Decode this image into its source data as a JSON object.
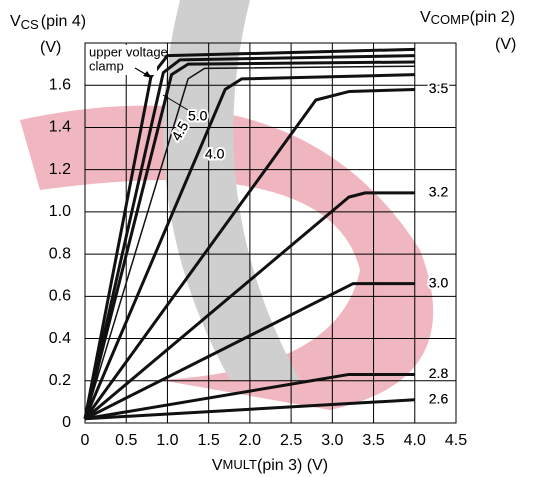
{
  "chart_data": {
    "type": "line",
    "y_axis_label": {
      "main": "V",
      "sub": "CS",
      "suffix": "(pin 4)",
      "unit": "(V)"
    },
    "legend_title": {
      "main": "V",
      "sub": "COMP",
      "suffix": "(pin 2)",
      "unit": "(V)"
    },
    "x_axis_label": {
      "main": "V",
      "sub": "MULT",
      "suffix": "(pin 3) (V)"
    },
    "annotation": [
      "upper voltage",
      "clamp"
    ],
    "xlim": [
      0,
      4.5
    ],
    "ylim": [
      0,
      1.8
    ],
    "xticks": [
      0,
      0.5,
      {
        "value": 1,
        "label": "1.0"
      },
      1.5,
      {
        "value": 2,
        "label": "2.0"
      },
      2.5,
      {
        "value": 3,
        "label": "3.0"
      },
      3.5,
      {
        "value": 4,
        "label": "4.0"
      },
      4.5
    ],
    "yticks": [
      0,
      0.2,
      0.4,
      0.6,
      0.8,
      {
        "value": 1,
        "label": "1.0"
      },
      1.2,
      1.4,
      1.6
    ],
    "grid": true,
    "series": [
      {
        "name": "2.6",
        "color": "#111111",
        "x": [
          0,
          4.0
        ],
        "values": [
          0.02,
          0.11
        ]
      },
      {
        "name": "2.8",
        "color": "#111111",
        "x": [
          0,
          3.2,
          4.0
        ],
        "values": [
          0.02,
          0.23,
          0.23
        ]
      },
      {
        "name": "3.0",
        "color": "#111111",
        "x": [
          0,
          3.25,
          4.0
        ],
        "values": [
          0.02,
          0.66,
          0.66
        ]
      },
      {
        "name": "3.2",
        "color": "#111111",
        "x": [
          0,
          3.2,
          3.4,
          4.0
        ],
        "values": [
          0.02,
          1.07,
          1.09,
          1.09
        ]
      },
      {
        "name": "3.5",
        "color": "#111111",
        "x": [
          0,
          2.8,
          3.2,
          4.0
        ],
        "values": [
          0.02,
          1.53,
          1.57,
          1.58
        ]
      },
      {
        "name": "4.0",
        "color": "#111111",
        "x": [
          0,
          1.7,
          1.9,
          4.0
        ],
        "values": [
          0.02,
          1.58,
          1.63,
          1.65
        ]
      },
      {
        "name": "4.5",
        "color": "#111111",
        "linewidth": 1.5,
        "x": [
          0,
          1.25,
          1.45,
          4.0
        ],
        "values": [
          0.02,
          1.63,
          1.68,
          1.69
        ]
      },
      {
        "name": "5.0",
        "color": "#111111",
        "x": [
          0,
          1.05,
          1.25,
          4.0
        ],
        "values": [
          0.02,
          1.65,
          1.7,
          1.71
        ]
      },
      {
        "color": "#111111",
        "x": [
          0,
          0.95,
          1.15,
          4.0
        ],
        "values": [
          0.02,
          1.66,
          1.72,
          1.74
        ]
      },
      {
        "color": "#111111",
        "x": [
          0,
          0.8,
          1.0,
          4.0
        ],
        "values": [
          0.02,
          1.64,
          1.74,
          1.77
        ]
      }
    ]
  }
}
